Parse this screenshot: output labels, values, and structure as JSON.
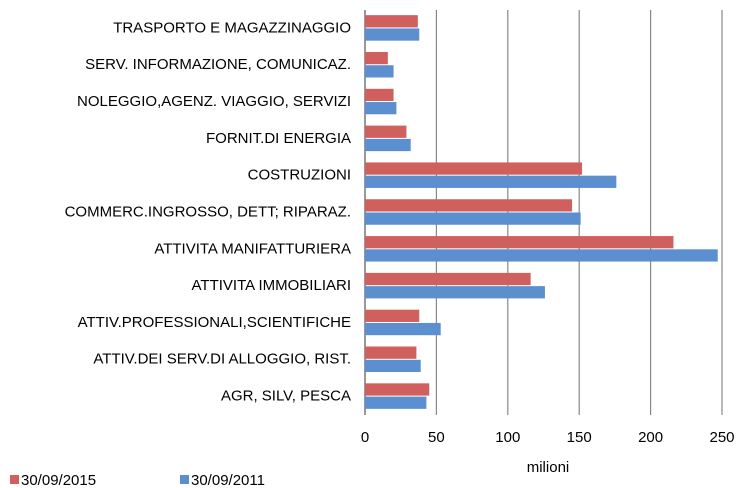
{
  "chart_data": {
    "type": "hbar",
    "x_label": "milioni",
    "categories": [
      "TRASPORTO E MAGAZZINAGGIO",
      "SERV. INFORMAZIONE, COMUNICAZ.",
      "NOLEGGIO,AGENZ. VIAGGIO, SERVIZI",
      "FORNIT.DI ENERGIA",
      "COSTRUZIONI",
      "COMMERC.INGROSSO, DETT; RIPARAZ.",
      "ATTIVITA MANIFATTURIERA",
      "ATTIVITA IMMOBILIARI",
      "ATTIV.PROFESSIONALI,SCIENTIFICHE",
      "ATTIV.DEI SERV.DI ALLOGGIO, RIST.",
      "AGR, SILV, PESCA"
    ],
    "series": [
      {
        "name": "30/09/2015",
        "color": "#d0605e",
        "values": [
          37,
          16,
          20,
          29,
          152,
          145,
          216,
          116,
          38,
          36,
          45
        ]
      },
      {
        "name": "30/09/2011",
        "color": "#5b8fd0",
        "values": [
          38,
          20,
          22,
          32,
          176,
          151,
          247,
          126,
          53,
          39,
          43
        ]
      }
    ],
    "xlim": [
      0,
      250
    ],
    "xticks": [
      0,
      50,
      100,
      150,
      200,
      250
    ],
    "grid": true,
    "legend": "bottom-left"
  }
}
